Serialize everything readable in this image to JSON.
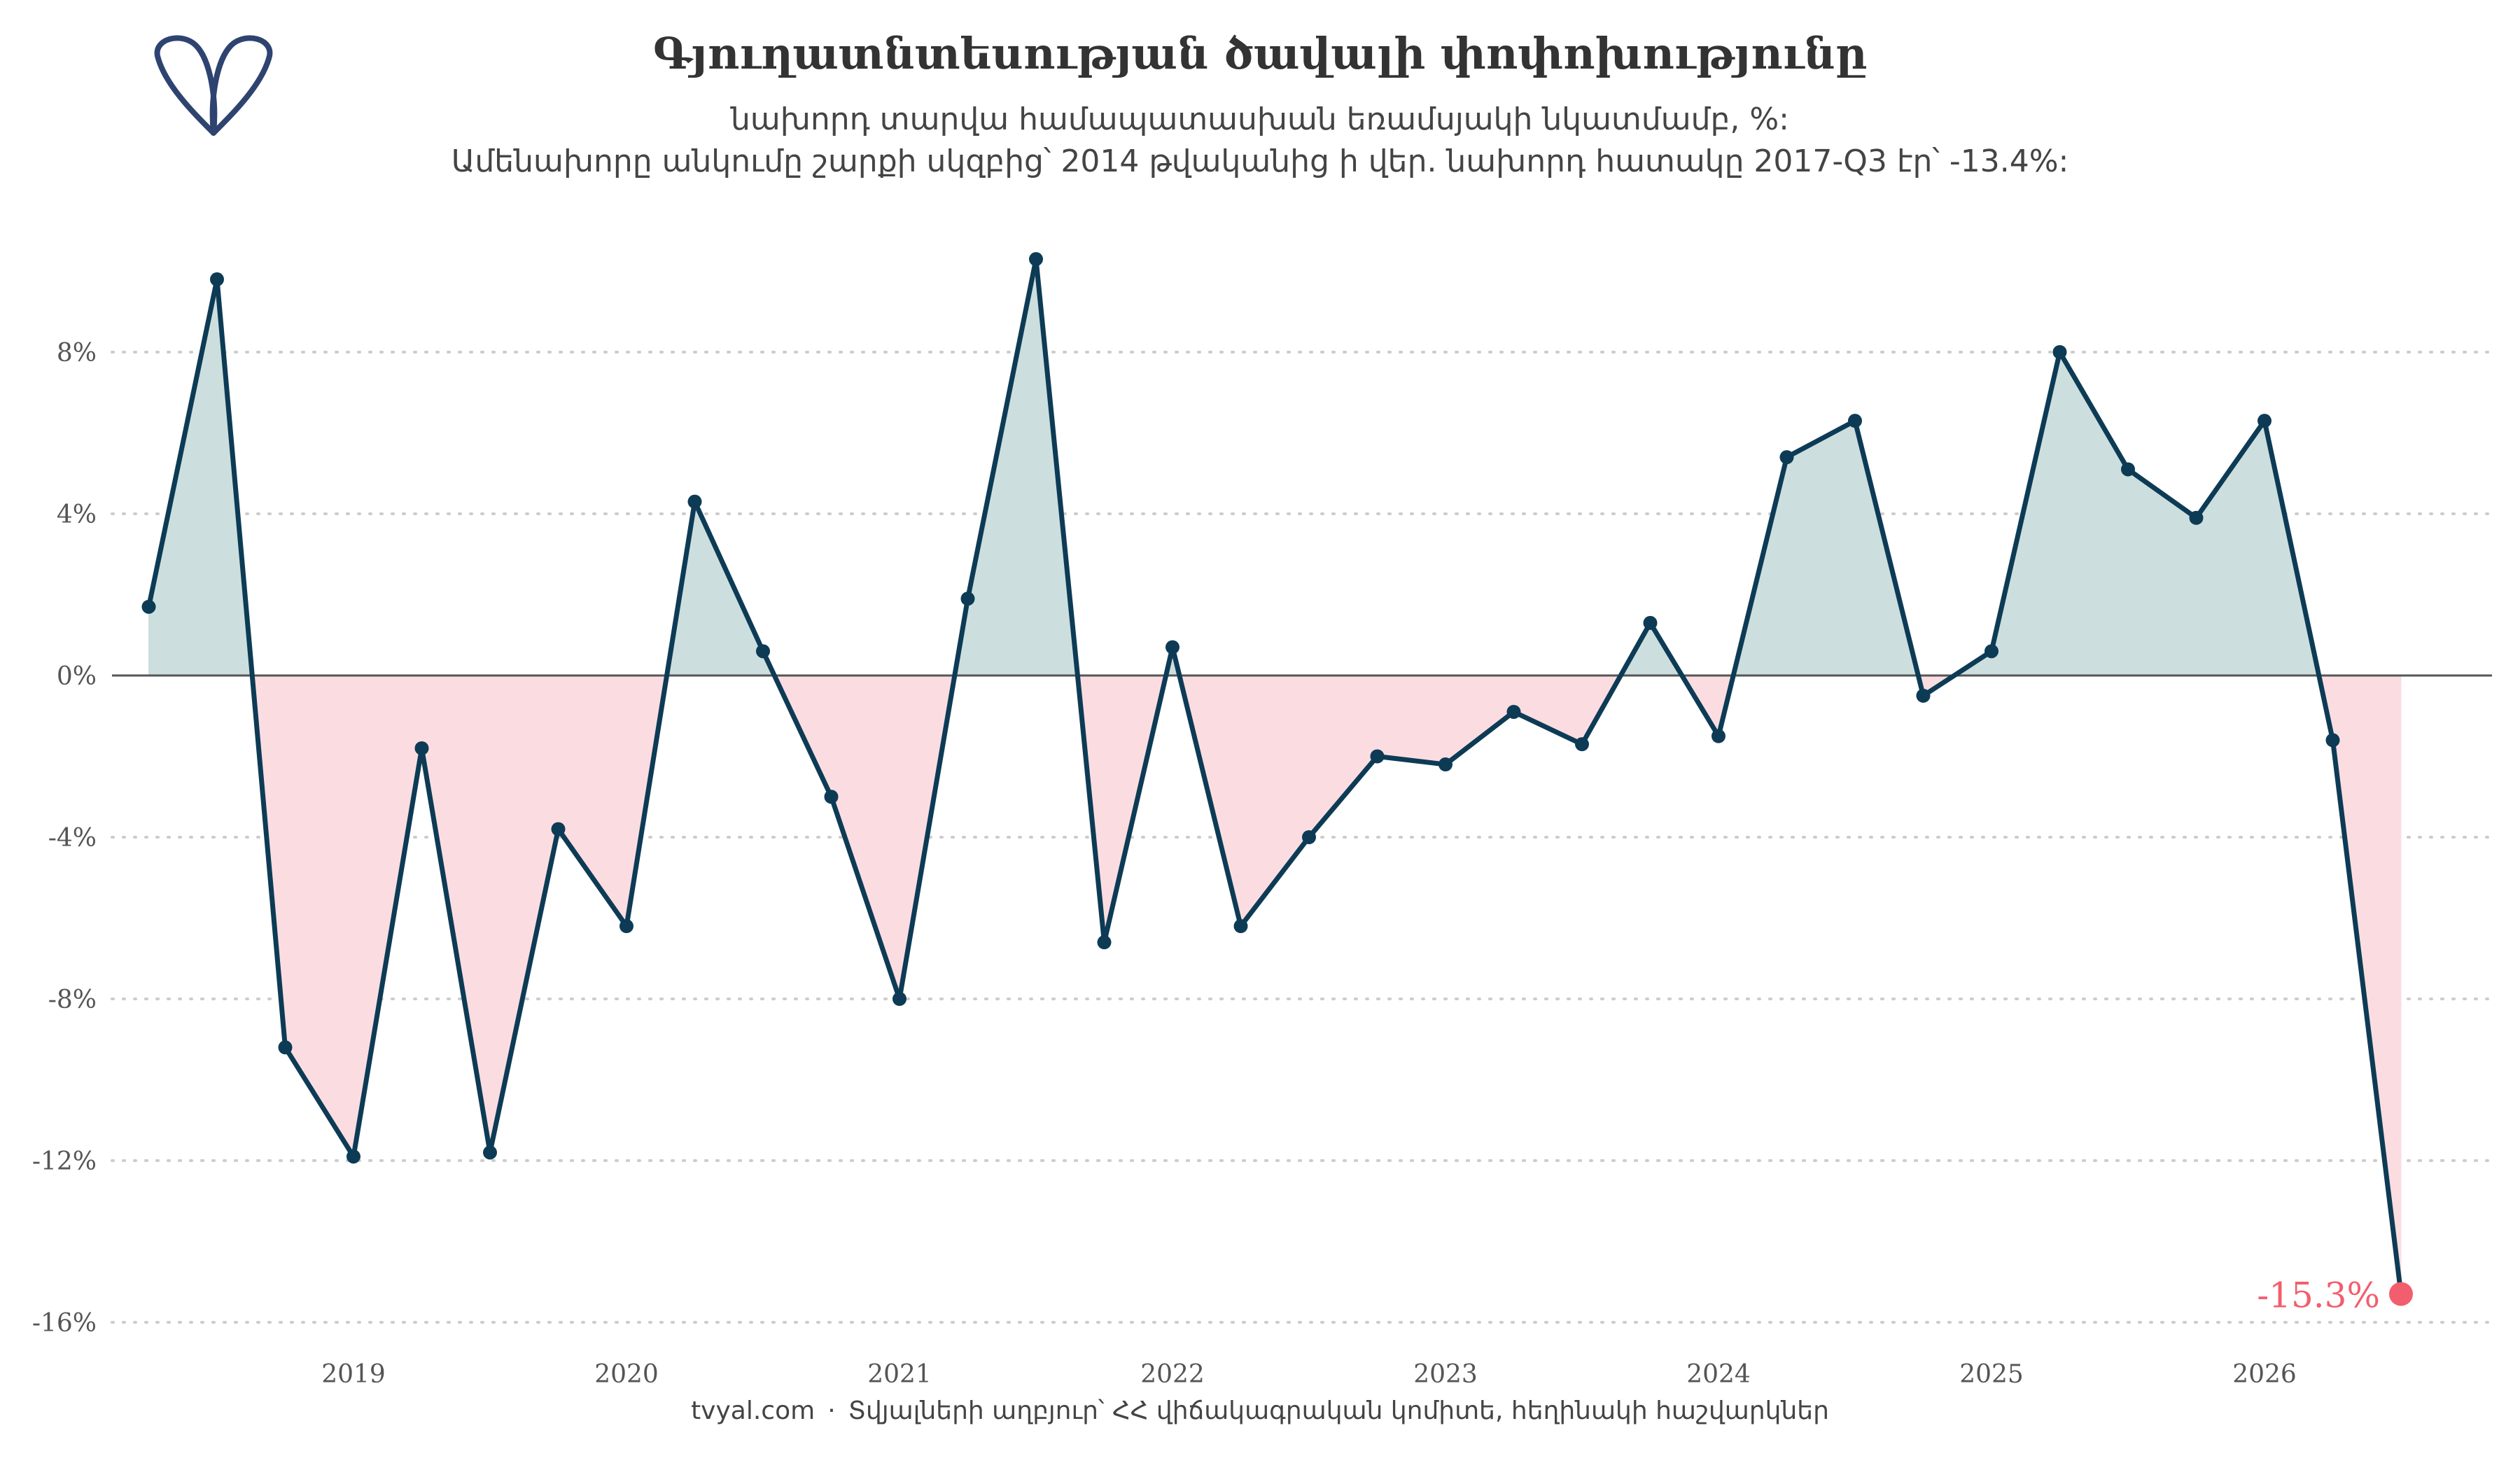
{
  "title": "Գյուղատնտեսության ծավալի փոփոխությունը",
  "subtitle_1": "նախորդ տարվա համապատասխան եռամսյակի նկատմամբ, %:",
  "subtitle_2": "Ամենախորը անկումը շարքի սկզբից՝ 2014 թվականից ի վեր. նախորդ հատակը 2017-Q3 էր՝ -13.4%:",
  "caption": {
    "source_site": "tvyal.com",
    "separator": "·",
    "source_text": "Տվյալների աղբյուր՝ ՀՀ վիճակագրական կոմիտե, հեղինակի հաշվարկներ"
  },
  "colors": {
    "line": "#0d3b55",
    "positive_fill": "#ccdfde",
    "negative_fill": "#fbdde1",
    "highlight": "#f25e6e",
    "logo": "#2e4370",
    "grid": "#cccccc",
    "zero_line": "#555555"
  },
  "icons": {
    "logo": "tvyal-logo-icon"
  },
  "chart_data": {
    "type": "area",
    "ylim": [
      -16,
      12
    ],
    "yticks": [
      8,
      4,
      0,
      -4,
      -8,
      -12,
      -16
    ],
    "ytick_labels": [
      "8%",
      "4%",
      "0%",
      "-4%",
      "-8%",
      "-12%",
      "-16%"
    ],
    "xticks": [
      2019,
      2020,
      2021,
      2022,
      2023,
      2024,
      2025,
      2026
    ],
    "xtick_labels": [
      "2019",
      "2020",
      "2021",
      "2022",
      "2023",
      "2024",
      "2025",
      "2026"
    ],
    "grid": "horizontal dotted",
    "series": [
      {
        "points": [
          {
            "q": "2018-Q2",
            "value": 1.7
          },
          {
            "q": "2018-Q3",
            "value": 9.8
          },
          {
            "q": "2018-Q4",
            "value": -9.2
          },
          {
            "q": "2019-Q1",
            "value": -11.9
          },
          {
            "q": "2019-Q2",
            "value": -1.8
          },
          {
            "q": "2019-Q3",
            "value": -11.8
          },
          {
            "q": "2019-Q4",
            "value": -3.8
          },
          {
            "q": "2020-Q1",
            "value": -6.2
          },
          {
            "q": "2020-Q2",
            "value": 4.3
          },
          {
            "q": "2020-Q3",
            "value": 0.6
          },
          {
            "q": "2020-Q4",
            "value": -3.0
          },
          {
            "q": "2021-Q1",
            "value": -8.0
          },
          {
            "q": "2021-Q2",
            "value": 1.9
          },
          {
            "q": "2021-Q3",
            "value": 10.3
          },
          {
            "q": "2021-Q4",
            "value": -6.6
          },
          {
            "q": "2022-Q1",
            "value": 0.7
          },
          {
            "q": "2022-Q2",
            "value": -6.2
          },
          {
            "q": "2022-Q3",
            "value": -4.0
          },
          {
            "q": "2022-Q4",
            "value": -2.0
          },
          {
            "q": "2023-Q1",
            "value": -2.2
          },
          {
            "q": "2023-Q2",
            "value": -0.9
          },
          {
            "q": "2023-Q3",
            "value": -1.7
          },
          {
            "q": "2023-Q4",
            "value": 1.3
          },
          {
            "q": "2024-Q1",
            "value": -1.5
          },
          {
            "q": "2024-Q2",
            "value": 5.4
          },
          {
            "q": "2024-Q3",
            "value": 6.3
          },
          {
            "q": "2024-Q4",
            "value": -0.5
          },
          {
            "q": "2025-Q1",
            "value": 0.6
          },
          {
            "q": "2025-Q2",
            "value": 8.0
          },
          {
            "q": "2025-Q3",
            "value": 5.1
          },
          {
            "q": "2025-Q4",
            "value": 3.9
          },
          {
            "q": "2026-Q1",
            "value": 6.3
          },
          {
            "q": "2026-Q2",
            "value": -1.6
          },
          {
            "q": "2026-Q3",
            "value": -15.3
          }
        ]
      }
    ],
    "annotation": {
      "label": "-15.3%",
      "at": "2026-Q3"
    }
  }
}
